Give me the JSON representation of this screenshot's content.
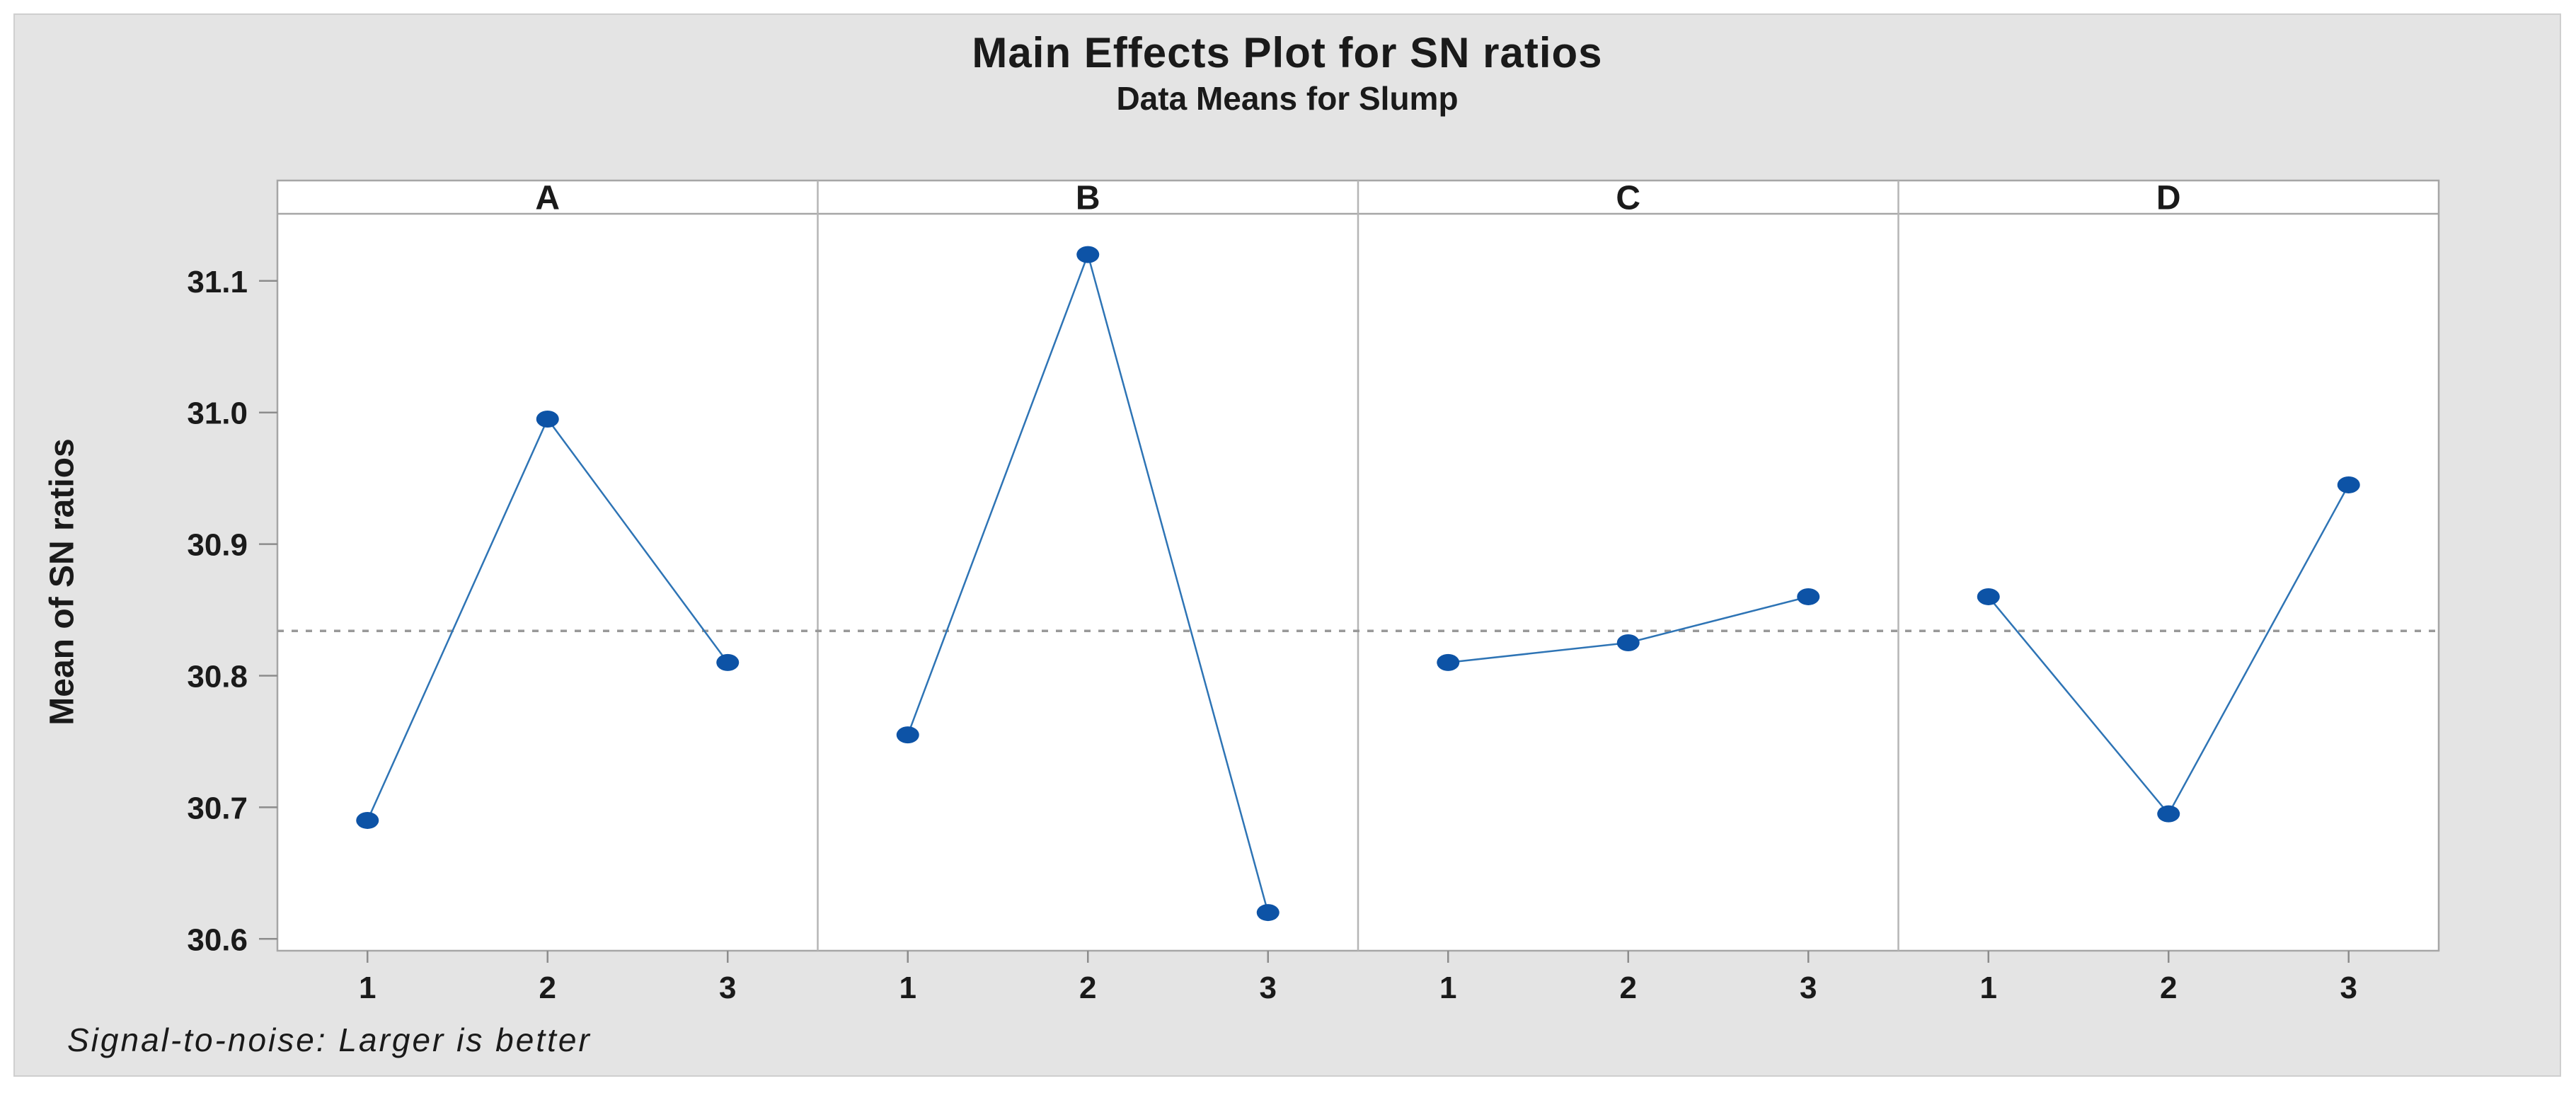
{
  "chart_data": {
    "type": "line",
    "title": "Main Effects Plot for SN ratios",
    "subtitle": "Data Means for Slump",
    "ylabel": "Mean of SN ratios",
    "footnote": "Signal-to-noise: Larger is better",
    "x_levels": [
      "1",
      "2",
      "3"
    ],
    "xlim": [
      0.5,
      3.5
    ],
    "panels": [
      {
        "label": "A",
        "means": [
          30.69,
          30.995,
          30.81
        ]
      },
      {
        "label": "B",
        "means": [
          30.755,
          31.12,
          30.62
        ]
      },
      {
        "label": "C",
        "means": [
          30.81,
          30.825,
          30.86
        ]
      },
      {
        "label": "D",
        "means": [
          30.86,
          30.695,
          30.945
        ]
      }
    ],
    "y_ticks": [
      "31.1",
      "31.0",
      "30.9",
      "30.8",
      "30.7",
      "30.6"
    ],
    "y_tick_values": [
      31.1,
      31.0,
      30.9,
      30.8,
      30.7,
      30.6
    ],
    "ylim": [
      30.591,
      31.151
    ],
    "reference_line_value": 30.834,
    "grid": false,
    "legend": false,
    "colors": {
      "marker": "#0d53a6",
      "series_line": "#2e74b5",
      "reference_line": "#999999",
      "panel_border": "#a6a6a6",
      "panel_divider": "#b5b5b5",
      "tick": "#8c8c8c",
      "text": "#1a1a1a",
      "canvas_background": "#e4e4e4",
      "canvas_border": "#cfcfcf",
      "plot_background": "#ffffff"
    }
  }
}
